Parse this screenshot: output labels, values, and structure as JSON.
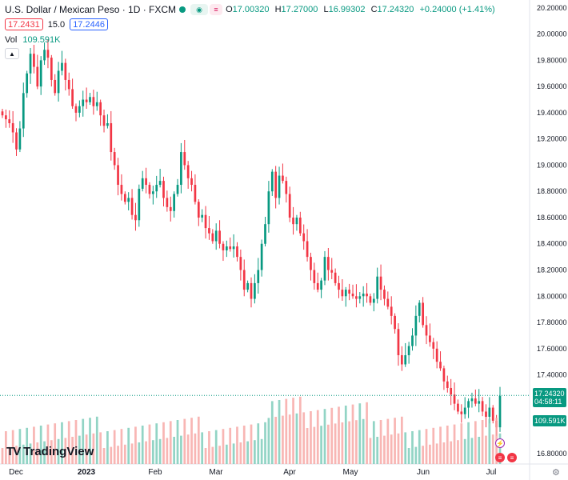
{
  "header": {
    "title": "U.S. Dollar / Mexican Peso · 1D · FXCM",
    "open_label": "O",
    "open": "17.00320",
    "high_label": "H",
    "high": "17.27000",
    "low_label": "L",
    "low": "16.99302",
    "close_label": "C",
    "close": "17.24320",
    "change": "+0.24000 (+1.41%)"
  },
  "trade": {
    "sell": "17.2431",
    "spread": "15.0",
    "buy": "17.2446"
  },
  "volume": {
    "label": "Vol",
    "value": "109.591K"
  },
  "price_axis": {
    "ticks": [
      "20.20000",
      "20.00000",
      "19.80000",
      "19.60000",
      "19.40000",
      "19.20000",
      "19.00000",
      "18.80000",
      "18.60000",
      "18.40000",
      "18.20000",
      "18.00000",
      "17.80000",
      "17.60000",
      "17.40000",
      "16.80000"
    ],
    "last_price": "17.24320",
    "countdown": "04:58:11",
    "volume_tag": "109.591K"
  },
  "time_axis": {
    "ticks": [
      "Dec",
      "2023",
      "Feb",
      "Mar",
      "Apr",
      "May",
      "Jun",
      "Jul"
    ]
  },
  "logo": {
    "text": "TradingView"
  },
  "colors": {
    "up": "#089981",
    "down": "#f23645",
    "up_vol": "#7fcdbb",
    "down_vol": "#f7a9a7",
    "accent": "#2962ff"
  },
  "chart_data": {
    "type": "candlestick",
    "symbol": "USD/MXN",
    "interval": "1D",
    "ylim": [
      16.72,
      20.26
    ],
    "candles_close": [
      19.38,
      19.35,
      19.32,
      19.25,
      19.12,
      19.28,
      19.55,
      19.7,
      19.85,
      19.75,
      19.6,
      19.8,
      19.88,
      19.82,
      19.65,
      19.55,
      19.72,
      19.78,
      19.65,
      19.58,
      19.45,
      19.4,
      19.45,
      19.5,
      19.48,
      19.52,
      19.45,
      19.48,
      19.38,
      19.3,
      19.32,
      19.1,
      19.0,
      18.85,
      18.78,
      18.72,
      18.75,
      18.62,
      18.58,
      18.82,
      18.9,
      18.85,
      18.78,
      18.8,
      18.85,
      18.88,
      18.75,
      18.68,
      18.65,
      18.78,
      18.85,
      19.1,
      19.0,
      18.9,
      18.85,
      18.72,
      18.6,
      18.62,
      18.52,
      18.48,
      18.42,
      18.5,
      18.4,
      18.35,
      18.38,
      18.36,
      18.38,
      18.3,
      18.2,
      18.05,
      18.1,
      17.98,
      18.1,
      18.2,
      18.4,
      18.55,
      18.8,
      18.95,
      18.75,
      18.92,
      18.88,
      18.78,
      18.6,
      18.55,
      18.6,
      18.48,
      18.42,
      18.3,
      18.2,
      18.1,
      18.05,
      18.12,
      18.3,
      18.2,
      18.18,
      18.1,
      18.05,
      18.0,
      18.05,
      18.02,
      18.0,
      17.98,
      18.0,
      18.02,
      18.0,
      17.95,
      17.98,
      18.15,
      18.05,
      17.98,
      17.92,
      17.85,
      17.75,
      17.55,
      17.48,
      17.55,
      17.62,
      17.7,
      17.85,
      17.95,
      17.78,
      17.7,
      17.65,
      17.6,
      17.5,
      17.45,
      17.35,
      17.3,
      17.25,
      17.18,
      17.12,
      17.1,
      17.15,
      17.2,
      17.22,
      17.18,
      17.2,
      17.12,
      17.08,
      17.15,
      17.05,
      17.0,
      17.24
    ],
    "last_close": 17.2432
  }
}
